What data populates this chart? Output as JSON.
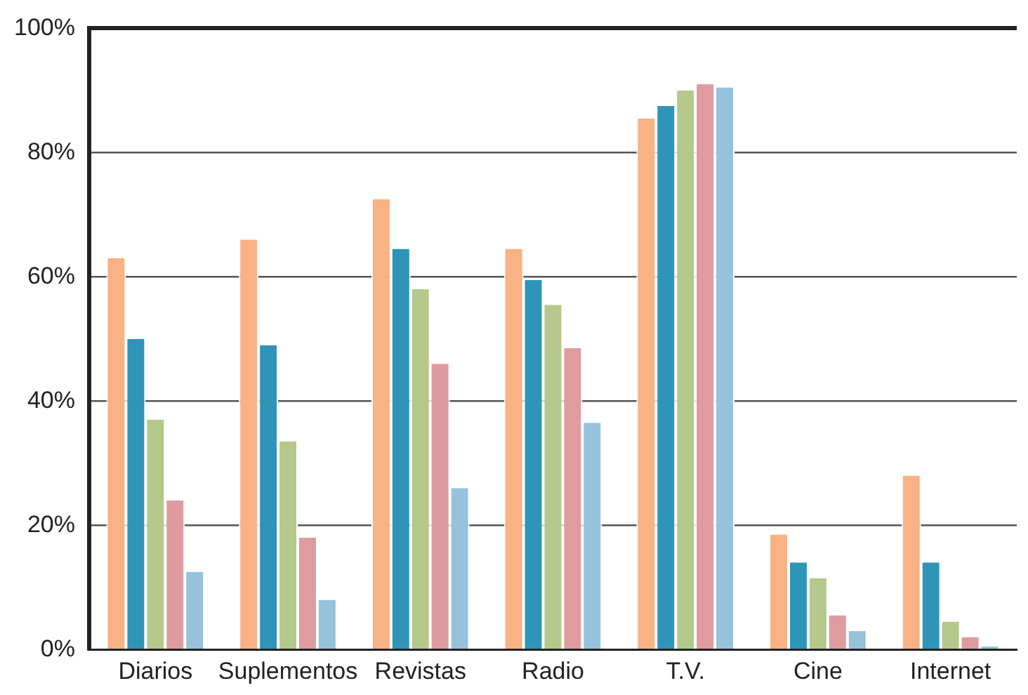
{
  "chart_data": {
    "type": "bar",
    "categories": [
      "Diarios",
      "Suplementos",
      "Revistas",
      "Radio",
      "T.V.",
      "Cine",
      "Internet"
    ],
    "series": [
      {
        "color": "#f9b283",
        "values": [
          63,
          66,
          72.5,
          64.5,
          85.5,
          18.5,
          28
        ]
      },
      {
        "color": "#2e95b9",
        "values": [
          50,
          49,
          64.5,
          59.5,
          87.5,
          14,
          14
        ]
      },
      {
        "color": "#b4c98b",
        "values": [
          37,
          33.5,
          58,
          55.5,
          90,
          11.5,
          4.5
        ]
      },
      {
        "color": "#de9ca0",
        "values": [
          24,
          18,
          46,
          48.5,
          91,
          5.5,
          2
        ]
      },
      {
        "color": "#96c3db",
        "values": [
          12.5,
          8,
          26,
          36.5,
          90.5,
          3,
          0.5
        ]
      }
    ],
    "ylim": [
      0,
      100
    ],
    "yticks": [
      {
        "value": 0,
        "label": "0%"
      },
      {
        "value": 20,
        "label": "20%"
      },
      {
        "value": 40,
        "label": "40%"
      },
      {
        "value": 60,
        "label": "60%"
      },
      {
        "value": 80,
        "label": "80%"
      },
      {
        "value": 100,
        "label": "100%"
      }
    ],
    "grid": "y"
  }
}
